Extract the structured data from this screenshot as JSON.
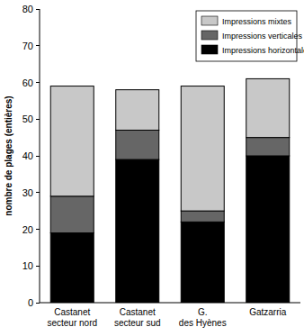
{
  "chart_data": {
    "type": "bar",
    "stacked": true,
    "y_label": "nombre de plages (entières)",
    "categories": [
      "Castanet secteur nord",
      "Castanet secteur sud",
      "G. des Hyènes",
      "Gatzarria"
    ],
    "series": [
      {
        "name": "Impressions horizontales",
        "color": "#000000",
        "values": [
          19,
          39,
          22,
          40
        ]
      },
      {
        "name": "Impressions verticales",
        "color": "#666666",
        "values": [
          10,
          8,
          3,
          5
        ]
      },
      {
        "name": "Impressions mixtes",
        "color": "#c8c8c8",
        "values": [
          30,
          11,
          34,
          16
        ]
      }
    ],
    "ylim": [
      0,
      80
    ],
    "yticks": [
      0,
      10,
      20,
      30,
      40,
      50,
      60,
      70,
      80
    ],
    "grid": false,
    "legend": "upper right"
  }
}
